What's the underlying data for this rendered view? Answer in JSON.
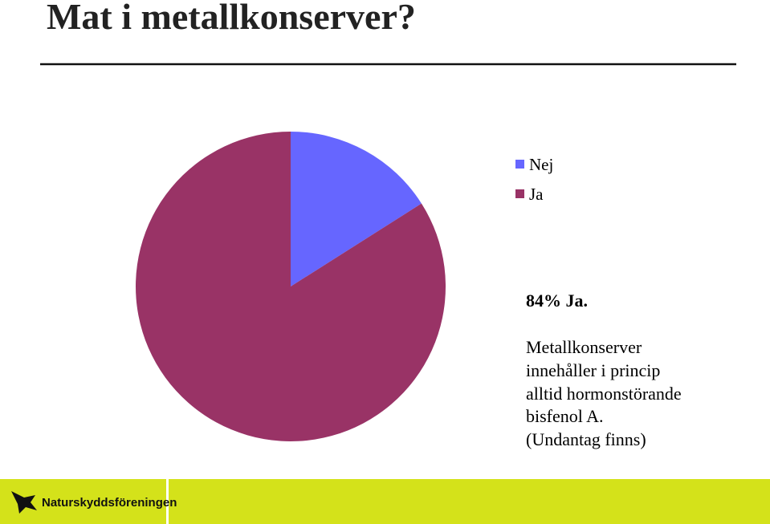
{
  "chart_data": {
    "type": "pie",
    "title": "Mat i metallkonserver?",
    "categories": [
      "Nej",
      "Ja"
    ],
    "values": [
      16,
      84
    ],
    "colors": [
      "#6666ff",
      "#993366"
    ],
    "annotations": [
      "84% Ja.",
      "Metallkonserver",
      "innehåller i princip",
      "alltid hormonstörande",
      "bisfenol A.",
      "(Undantag finns)"
    ]
  },
  "footer": {
    "logo_text": "Naturskyddsföreningen"
  }
}
